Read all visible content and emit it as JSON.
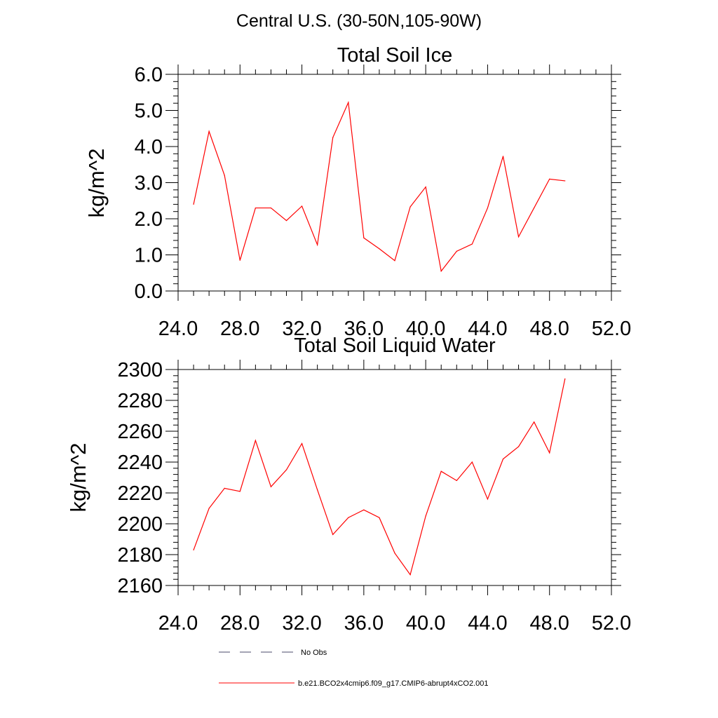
{
  "page_title": "Central U.S. (30-50N,105-90W)",
  "colors": {
    "series": "#ff0000",
    "obs": "#4a4a6a",
    "axis": "#000000"
  },
  "chart_data": [
    {
      "type": "line",
      "title": "Total Soil Ice",
      "xlabel": "",
      "ylabel": "kg/m^2",
      "xlim": [
        24,
        52
      ],
      "ylim": [
        0,
        6
      ],
      "x_ticks": [
        24,
        28,
        32,
        36,
        40,
        44,
        48,
        52
      ],
      "x_tick_labels": [
        "24.0",
        "28.0",
        "32.0",
        "36.0",
        "40.0",
        "44.0",
        "48.0",
        "52.0"
      ],
      "y_ticks": [
        0,
        1,
        2,
        3,
        4,
        5,
        6
      ],
      "y_tick_labels": [
        "0.0",
        "1.0",
        "2.0",
        "3.0",
        "4.0",
        "5.0",
        "6.0"
      ],
      "x": [
        25,
        26,
        27,
        28,
        29,
        30,
        31,
        32,
        33,
        34,
        35,
        36,
        37,
        38,
        39,
        40,
        41,
        42,
        43,
        44,
        45,
        46,
        47,
        48,
        49
      ],
      "series": [
        {
          "name": "b.e21.BCO2x4cmip6.f09_g17.CMIP6-abrupt4xCO2.001",
          "values": [
            2.4,
            4.42,
            3.2,
            0.85,
            2.3,
            2.3,
            1.95,
            2.35,
            1.28,
            4.25,
            5.22,
            1.47,
            1.17,
            0.84,
            2.33,
            2.88,
            0.55,
            1.1,
            1.3,
            2.3,
            3.73,
            1.5,
            2.3,
            3.1,
            3.05
          ]
        }
      ]
    },
    {
      "type": "line",
      "title": "Total Soil Liquid Water",
      "xlabel": "",
      "ylabel": "kg/m^2",
      "xlim": [
        24,
        52
      ],
      "ylim": [
        2160,
        2300
      ],
      "x_ticks": [
        24,
        28,
        32,
        36,
        40,
        44,
        48,
        52
      ],
      "x_tick_labels": [
        "24.0",
        "28.0",
        "32.0",
        "36.0",
        "40.0",
        "44.0",
        "48.0",
        "52.0"
      ],
      "y_ticks": [
        2160,
        2180,
        2200,
        2220,
        2240,
        2260,
        2280,
        2300
      ],
      "y_tick_labels": [
        "2160",
        "2180",
        "2200",
        "2220",
        "2240",
        "2260",
        "2280",
        "2300"
      ],
      "x": [
        25,
        26,
        27,
        28,
        29,
        30,
        31,
        32,
        33,
        34,
        35,
        36,
        37,
        38,
        39,
        40,
        41,
        42,
        43,
        44,
        45,
        46,
        47,
        48,
        49
      ],
      "series": [
        {
          "name": "b.e21.BCO2x4cmip6.f09_g17.CMIP6-abrupt4xCO2.001",
          "values": [
            2183,
            2210,
            2223,
            2221,
            2254,
            2224,
            2235,
            2252,
            2222,
            2193,
            2204,
            2209,
            2204,
            2181,
            2167,
            2205,
            2234,
            2228,
            2240,
            2216,
            2242,
            2250,
            2266,
            2246,
            2294
          ]
        }
      ]
    }
  ],
  "legend": [
    {
      "label": "No Obs",
      "style": "dashed"
    },
    {
      "label": "b.e21.BCO2x4cmip6.f09_g17.CMIP6-abrupt4xCO2.001",
      "style": "solid"
    }
  ]
}
